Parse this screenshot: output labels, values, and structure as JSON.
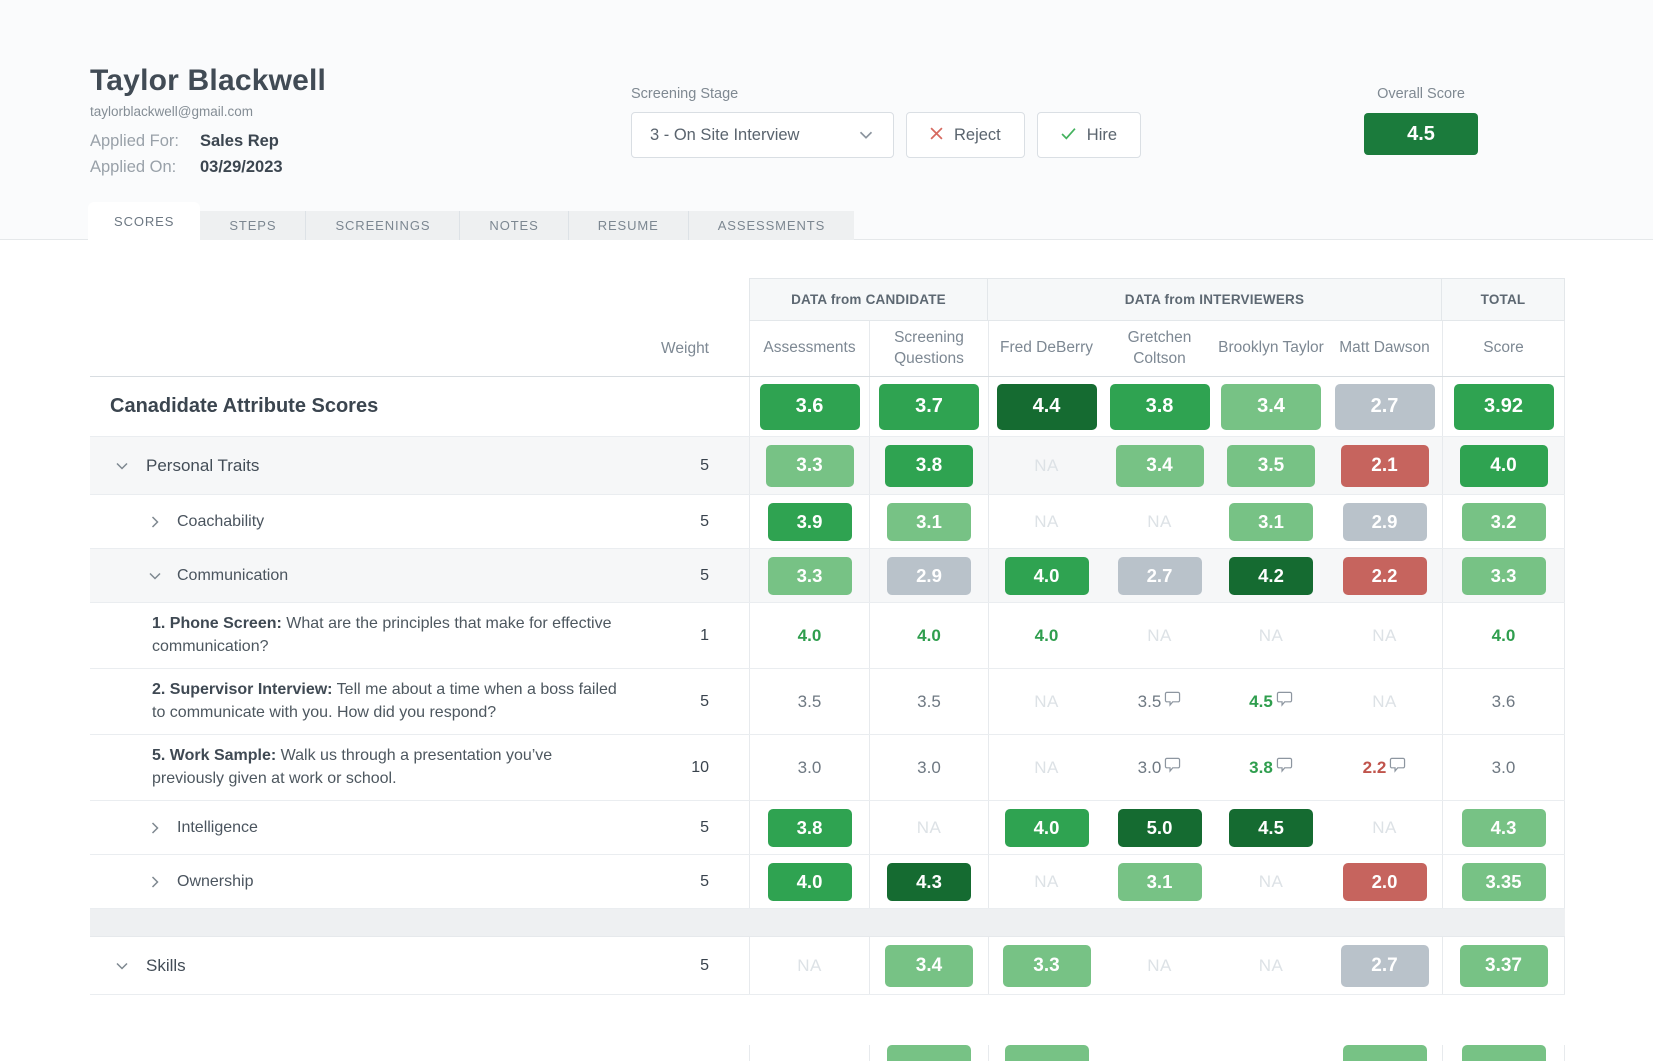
{
  "colors": {
    "badge_green": "#1b7b3c",
    "chip_dark": "#156b31",
    "chip_medium": "#2fa351",
    "chip_light": "#77c285",
    "chip_gray": "#b9c2ca",
    "chip_red": "#c6645e",
    "text_green": "#2f9e4e",
    "text_red": "#c0544c",
    "text_muted_value": "#6e7882",
    "na": "#dde2e6",
    "accent_red_x": "#d66a60",
    "accent_green_check": "#44b25e"
  },
  "header": {
    "name": "Taylor Blackwell",
    "email": "taylorblackwell@gmail.com",
    "applied_for_label": "Applied For:",
    "applied_for_value": "Sales Rep",
    "applied_on_label": "Applied On:",
    "applied_on_value": "03/29/2023",
    "screening_stage_label": "Screening Stage",
    "screening_stage_value": "3 - On Site Interview",
    "reject_label": "Reject",
    "hire_label": "Hire",
    "overall_score_label": "Overall Score",
    "overall_score_value": "4.5"
  },
  "tabs": [
    {
      "label": "SCORES",
      "active": true
    },
    {
      "label": "STEPS",
      "active": false
    },
    {
      "label": "SCREENINGS",
      "active": false
    },
    {
      "label": "NOTES",
      "active": false
    },
    {
      "label": "RESUME",
      "active": false
    },
    {
      "label": "ASSESSMENTS",
      "active": false
    }
  ],
  "table": {
    "section_headers": {
      "candidate": "DATA from CANDIDATE",
      "interviewers": "DATA from INTERVIEWERS",
      "total": "TOTAL"
    },
    "columns": {
      "weight": "Weight",
      "data": [
        "Assessments",
        "Screening Questions",
        "Fred DeBerry",
        "Gretchen Coltson",
        "Brooklyn Taylor",
        "Matt Dawson",
        "Score"
      ]
    },
    "rows": [
      {
        "type": "title",
        "label": "Canadidate Attribute Scores",
        "weight": "",
        "cells": [
          {
            "v": "3.6",
            "s": "med"
          },
          {
            "v": "3.7",
            "s": "med"
          },
          {
            "v": "4.4",
            "s": "dark"
          },
          {
            "v": "3.8",
            "s": "med"
          },
          {
            "v": "3.4",
            "s": "light"
          },
          {
            "v": "2.7",
            "s": "gray"
          },
          {
            "v": "3.92",
            "s": "med"
          }
        ]
      },
      {
        "type": "category",
        "label": "Personal Traits",
        "expanded": true,
        "shaded": true,
        "weight": "5",
        "cells": [
          {
            "v": "3.3",
            "s": "light"
          },
          {
            "v": "3.8",
            "s": "med"
          },
          {
            "s": "na"
          },
          {
            "v": "3.4",
            "s": "light"
          },
          {
            "v": "3.5",
            "s": "light"
          },
          {
            "v": "2.1",
            "s": "red"
          },
          {
            "v": "4.0",
            "s": "med"
          }
        ]
      },
      {
        "type": "attribute",
        "label": "Coachability",
        "expanded": false,
        "shaded": false,
        "weight": "5",
        "cells": [
          {
            "v": "3.9",
            "s": "med"
          },
          {
            "v": "3.1",
            "s": "light"
          },
          {
            "s": "na"
          },
          {
            "s": "na"
          },
          {
            "v": "3.1",
            "s": "light"
          },
          {
            "v": "2.9",
            "s": "gray"
          },
          {
            "v": "3.2",
            "s": "light"
          }
        ]
      },
      {
        "type": "attribute",
        "label": "Communication",
        "expanded": true,
        "shaded": true,
        "weight": "5",
        "cells": [
          {
            "v": "3.3",
            "s": "light"
          },
          {
            "v": "2.9",
            "s": "gray"
          },
          {
            "v": "4.0",
            "s": "med"
          },
          {
            "v": "2.7",
            "s": "gray"
          },
          {
            "v": "4.2",
            "s": "dark"
          },
          {
            "v": "2.2",
            "s": "red"
          },
          {
            "v": "3.3",
            "s": "light"
          }
        ]
      },
      {
        "type": "question",
        "prefix": "1. Phone Screen:",
        "label": "What are the principles that make for effective communication?",
        "weight": "1",
        "cells": [
          {
            "v": "4.0",
            "s": "tgreen"
          },
          {
            "v": "4.0",
            "s": "tgreen"
          },
          {
            "v": "4.0",
            "s": "tgreen"
          },
          {
            "s": "na"
          },
          {
            "s": "na"
          },
          {
            "s": "na"
          },
          {
            "v": "4.0",
            "s": "tgreen"
          }
        ]
      },
      {
        "type": "question",
        "prefix": "2. Supervisor Interview:",
        "label": "Tell me about a time when a boss failed to communicate with you. How did you respond?",
        "weight": "5",
        "cells": [
          {
            "v": "3.5",
            "s": "tgray"
          },
          {
            "v": "3.5",
            "s": "tgray"
          },
          {
            "s": "na"
          },
          {
            "v": "3.5",
            "s": "tgray",
            "cm": true
          },
          {
            "v": "4.5",
            "s": "tgreen",
            "cm": true
          },
          {
            "s": "na"
          },
          {
            "v": "3.6",
            "s": "tgray"
          }
        ]
      },
      {
        "type": "question",
        "prefix": "5. Work Sample:",
        "label": "Walk us through a presentation you’ve previously given at work or school.",
        "weight": "10",
        "cells": [
          {
            "v": "3.0",
            "s": "tgray"
          },
          {
            "v": "3.0",
            "s": "tgray"
          },
          {
            "s": "na"
          },
          {
            "v": "3.0",
            "s": "tgray",
            "cm": true
          },
          {
            "v": "3.8",
            "s": "tgreen",
            "cm": true
          },
          {
            "v": "2.2",
            "s": "tred",
            "cm": true
          },
          {
            "v": "3.0",
            "s": "tgray"
          }
        ]
      },
      {
        "type": "attribute",
        "label": "Intelligence",
        "expanded": false,
        "shaded": false,
        "weight": "5",
        "cells": [
          {
            "v": "3.8",
            "s": "med"
          },
          {
            "s": "na"
          },
          {
            "v": "4.0",
            "s": "med"
          },
          {
            "v": "5.0",
            "s": "dark"
          },
          {
            "v": "4.5",
            "s": "dark"
          },
          {
            "s": "na"
          },
          {
            "v": "4.3",
            "s": "light"
          }
        ]
      },
      {
        "type": "attribute",
        "label": "Ownership",
        "expanded": false,
        "shaded": false,
        "weight": "5",
        "cells": [
          {
            "v": "4.0",
            "s": "med"
          },
          {
            "v": "4.3",
            "s": "dark"
          },
          {
            "s": "na"
          },
          {
            "v": "3.1",
            "s": "light"
          },
          {
            "s": "na"
          },
          {
            "v": "2.0",
            "s": "red"
          },
          {
            "v": "3.35",
            "s": "light"
          }
        ]
      },
      {
        "type": "spacer"
      },
      {
        "type": "category",
        "label": "Skills",
        "expanded": true,
        "shaded": false,
        "weight": "5",
        "cells": [
          {
            "s": "na"
          },
          {
            "v": "3.4",
            "s": "light"
          },
          {
            "v": "3.3",
            "s": "light"
          },
          {
            "s": "na"
          },
          {
            "s": "na"
          },
          {
            "v": "2.7",
            "s": "gray"
          },
          {
            "v": "3.37",
            "s": "light"
          }
        ]
      },
      {
        "type": "partial",
        "label": "",
        "weight": "",
        "cells": [
          null,
          {
            "v": "",
            "s": "light"
          },
          {
            "v": "",
            "s": "light"
          },
          null,
          null,
          {
            "v": "",
            "s": "light"
          },
          {
            "v": "",
            "s": "light"
          }
        ]
      }
    ]
  }
}
